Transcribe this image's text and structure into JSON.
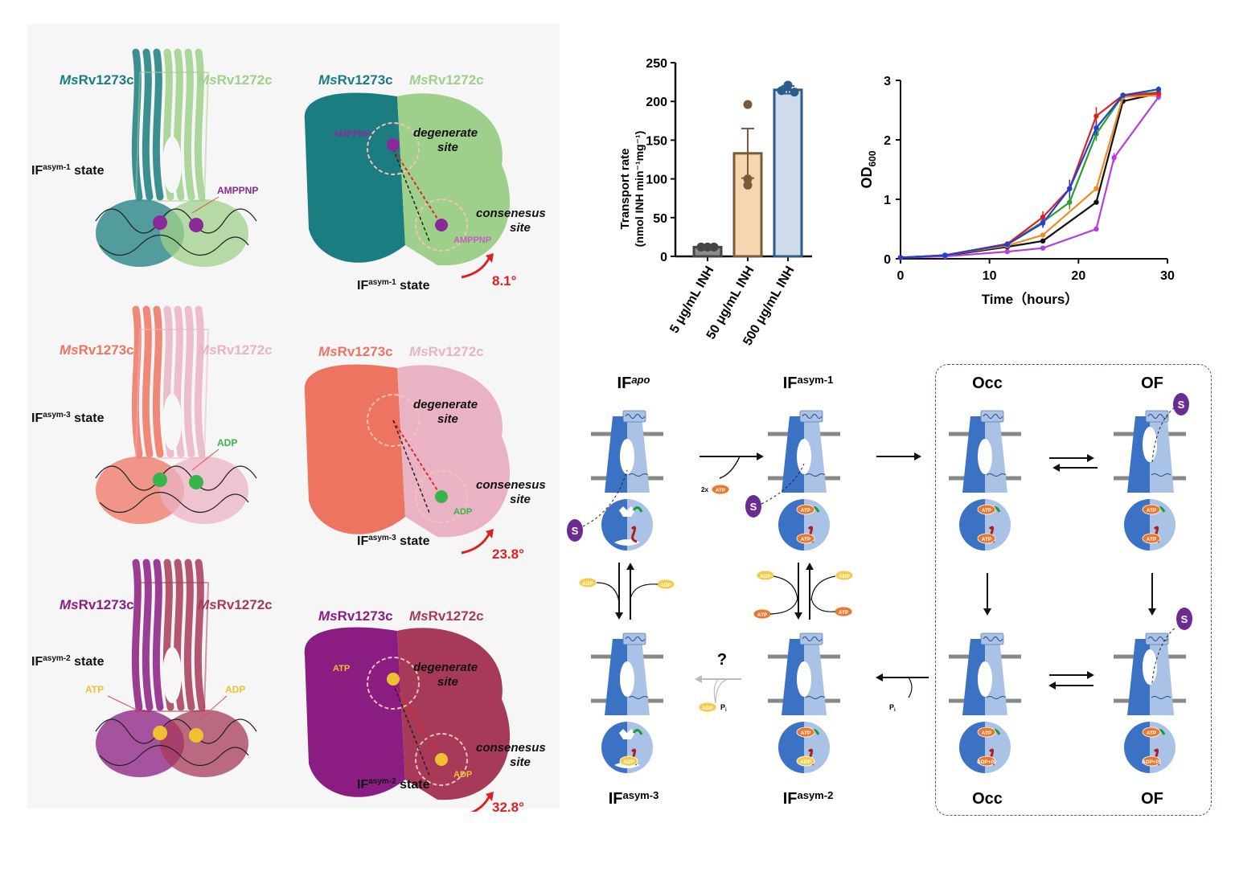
{
  "rows": [
    {
      "state_label": "IF",
      "state_sup": "asym-1",
      "state_word": "state",
      "chain_a": {
        "prefix": "Ms",
        "name": "Rv1273c"
      },
      "chain_b": {
        "prefix": "Ms",
        "name": "Rv1272c"
      },
      "ligand_left": "AMPPNP",
      "surface_ligand_top": "AMPPNP",
      "surface_ligand_bottom": "AMPPNP",
      "degenerate_site": "degenerate site",
      "consensus_site": "consenesus site",
      "angle": "8.1°",
      "colors": {
        "a": "#1b7d7f",
        "b": "#9fd08b",
        "ligand": "#8a2a9a"
      }
    },
    {
      "state_label": "IF",
      "state_sup": "asym-3",
      "state_word": "state",
      "chain_a": {
        "prefix": "Ms",
        "name": "Rv1273c"
      },
      "chain_b": {
        "prefix": "Ms",
        "name": "Rv1272c"
      },
      "ligand_left": "ADP",
      "surface_ligand_bottom": "ADP",
      "degenerate_site": "degenerate site",
      "consensus_site": "consenesus site",
      "angle": "23.8°",
      "colors": {
        "a": "#ee7462",
        "b": "#eab3c3",
        "ligand": "#38b44a"
      }
    },
    {
      "state_label": "IF",
      "state_sup": "asym-2",
      "state_word": "state",
      "chain_a": {
        "prefix": "Ms",
        "name": "Rv1273c"
      },
      "chain_b": {
        "prefix": "Ms",
        "name": "Rv1272c"
      },
      "ligand_left": "ATP",
      "ligand_right": "ADP",
      "surface_ligand_top": "ATP",
      "surface_ligand_bottom": "ADP",
      "degenerate_site": "degenerate site",
      "consensus_site": "consenesus site",
      "angle": "32.8°",
      "colors": {
        "a": "#8a1c82",
        "b": "#a73a58",
        "ligand": "#f0c030"
      }
    }
  ],
  "chart_data": [
    {
      "type": "bar",
      "ylabel": "Transport rate (nmol INH min⁻¹mg⁻¹)",
      "categories": [
        "5 μg/mL INH",
        "50 μg/mL INH",
        "500 μg/mL INH"
      ],
      "values": [
        12,
        133,
        215
      ],
      "errors": [
        2,
        32,
        5
      ],
      "points": [
        [
          12,
          12,
          12
        ],
        [
          196,
          100,
          92
        ],
        [
          221,
          212,
          214
        ]
      ],
      "ylim": [
        0,
        250
      ],
      "yticks": [
        0,
        50,
        100,
        150,
        200,
        250
      ],
      "colors": {
        "fill": [
          "#8c8c8c",
          "#f5d6b0",
          "#cddbeb"
        ],
        "edge": [
          "#444444",
          "#7a5a3a",
          "#2c5d8a"
        ]
      }
    },
    {
      "type": "line",
      "xlabel": "Time（hours）",
      "ylabel": "OD",
      "ylabel_sub": "600",
      "xlim": [
        0,
        30
      ],
      "ylim": [
        0,
        3
      ],
      "xticks": [
        0,
        10,
        20,
        30
      ],
      "yticks": [
        0,
        1,
        2,
        3
      ],
      "series": [
        {
          "color": "#111111",
          "x": [
            0,
            5,
            12,
            16,
            22,
            25,
            29
          ],
          "y": [
            0.02,
            0.05,
            0.2,
            0.3,
            0.95,
            2.65,
            2.78
          ],
          "err": [
            0,
            0,
            0,
            0,
            0,
            0,
            0.04
          ]
        },
        {
          "color": "#f08a24",
          "x": [
            0,
            5,
            12,
            16,
            22,
            25,
            29
          ],
          "y": [
            0.02,
            0.06,
            0.22,
            0.4,
            1.18,
            2.72,
            2.75
          ],
          "err": [
            0,
            0,
            0,
            0,
            0,
            0,
            0.04
          ]
        },
        {
          "color": "#b43fe0",
          "x": [
            0,
            5,
            12,
            16,
            22,
            24,
            29
          ],
          "y": [
            0.02,
            0.04,
            0.12,
            0.18,
            0.5,
            1.7,
            2.72
          ],
          "err": [
            0,
            0,
            0,
            0,
            0,
            0.08,
            0.05
          ]
        },
        {
          "color": "#2ca02c",
          "x": [
            0,
            5,
            12,
            16,
            19,
            22,
            25,
            29
          ],
          "y": [
            0.02,
            0.06,
            0.25,
            0.62,
            0.95,
            2.1,
            2.75,
            2.8
          ],
          "err": [
            0,
            0,
            0,
            0.08,
            0.12,
            0.12,
            0,
            0.05
          ]
        },
        {
          "color": "#e02020",
          "x": [
            0,
            5,
            12,
            16,
            19,
            22,
            25,
            29
          ],
          "y": [
            0.02,
            0.06,
            0.25,
            0.7,
            1.18,
            2.4,
            2.75,
            2.78
          ],
          "err": [
            0,
            0,
            0,
            0.1,
            0.15,
            0.15,
            0,
            0.05
          ]
        },
        {
          "color": "#2040d0",
          "x": [
            0,
            5,
            12,
            16,
            19,
            22,
            25,
            29
          ],
          "y": [
            0.02,
            0.06,
            0.24,
            0.6,
            1.18,
            2.2,
            2.75,
            2.85
          ],
          "err": [
            0,
            0,
            0,
            0.08,
            0.15,
            0.12,
            0,
            0.05
          ]
        }
      ]
    }
  ],
  "scheme": {
    "states": {
      "if_apo": {
        "label": "IF",
        "sup": "apo"
      },
      "if_asym1": {
        "label": "IF",
        "sup": "asym-1"
      },
      "if_asym3": {
        "label": "IF",
        "sup": "asym-3"
      },
      "if_asym2": {
        "label": "IF",
        "sup": "asym-2"
      },
      "occ_top": "Occ",
      "of_top": "OF",
      "occ_bottom": "Occ",
      "of_bottom": "OF"
    },
    "substrate": "S",
    "atp": "ATP",
    "adp": "ADP",
    "two_x": "2x",
    "pi": "P",
    "pi_sub": "i",
    "adp_pi": "ADP+Pi",
    "question": "?",
    "colors": {
      "dark": "#3b72c4",
      "light": "#a9c2e6",
      "atp": "#e8792f",
      "adp": "#f4cc48",
      "substrate": "#6a2c91",
      "membrane": "#888888"
    }
  }
}
